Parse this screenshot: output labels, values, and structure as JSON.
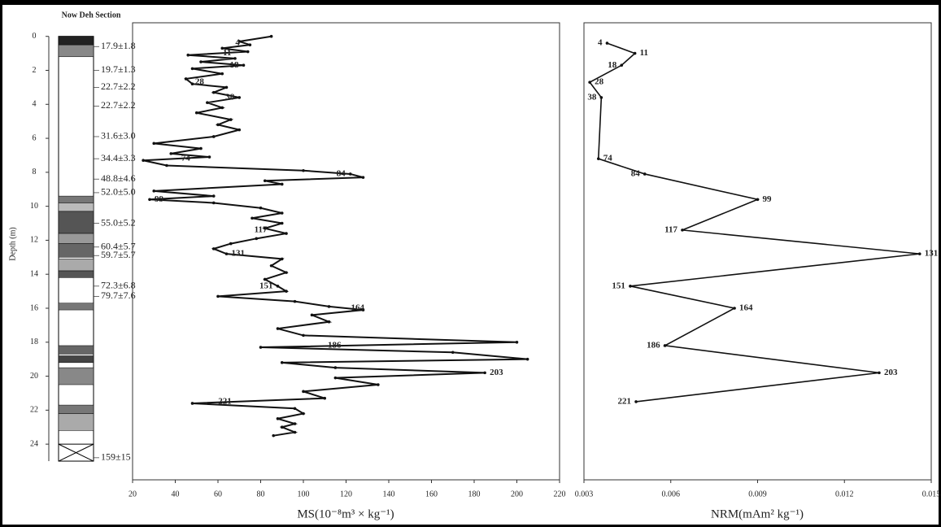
{
  "chart_data": [
    {
      "type": "column",
      "title": "Now Deh Section",
      "y_label": "Depth (m)",
      "ylim": [
        -0.8,
        26.1
      ],
      "yticks": [
        0,
        2,
        4,
        6,
        8,
        10,
        12,
        14,
        16,
        18,
        20,
        22,
        24
      ],
      "ages": {
        "depth": [
          0.6,
          2.0,
          3.0,
          4.1,
          5.9,
          7.2,
          8.4,
          9.2,
          11.0,
          12.4,
          12.9,
          14.7,
          15.3,
          24.8
        ],
        "labels": [
          "17.9±1.8",
          "19.7±1.3",
          "22.7±2.2",
          "22.7±2.2",
          "31.6±3.0",
          "34.4±3.3",
          "48.8±4.6",
          "52.0±5.0",
          "55.0±5.2",
          "60.4±5.7",
          "59.7±5.7",
          "72.3±6.8",
          "79.7±7.6",
          "159±15"
        ]
      }
    },
    {
      "type": "line",
      "x_label": "MS(10⁻⁸m³ × kg⁻¹)",
      "color": "#111111",
      "xlim": [
        20,
        220
      ],
      "xticks": [
        20,
        40,
        60,
        80,
        100,
        120,
        140,
        160,
        180,
        200,
        220
      ],
      "depth": [
        0,
        0.3,
        0.5,
        0.7,
        0.9,
        1.1,
        1.3,
        1.5,
        1.7,
        1.9,
        2.2,
        2.5,
        2.8,
        3.0,
        3.3,
        3.6,
        3.9,
        4.2,
        4.5,
        4.9,
        5.2,
        5.5,
        5.9,
        6.3,
        6.6,
        6.9,
        7.1,
        7.3,
        7.6,
        7.9,
        8.1,
        8.3,
        8.5,
        8.7,
        9.1,
        9.4,
        9.6,
        9.8,
        10.1,
        10.4,
        10.7,
        11.0,
        11.3,
        11.6,
        11.9,
        12.2,
        12.5,
        12.8,
        13.1,
        13.5,
        13.9,
        14.3,
        14.7,
        15.0,
        15.3,
        15.6,
        15.9,
        16.1,
        16.4,
        16.8,
        17.2,
        17.6,
        18.0,
        18.3,
        18.6,
        19.0,
        19.2,
        19.5,
        19.8,
        20.1,
        20.5,
        20.9,
        21.3,
        21.6,
        21.9,
        22.2,
        22.5,
        22.8,
        23.0,
        23.3,
        23.5
      ],
      "values": [
        85,
        70,
        75,
        62,
        74,
        46,
        68,
        52,
        72,
        48,
        62,
        45,
        48,
        64,
        58,
        70,
        55,
        62,
        50,
        66,
        60,
        70,
        58,
        30,
        52,
        38,
        56,
        25,
        36,
        100,
        122,
        128,
        82,
        90,
        30,
        58,
        28,
        58,
        80,
        90,
        76,
        90,
        82,
        92,
        78,
        66,
        58,
        64,
        90,
        85,
        92,
        82,
        88,
        92,
        60,
        96,
        112,
        128,
        104,
        112,
        88,
        100,
        200,
        80,
        170,
        205,
        90,
        115,
        185,
        115,
        135,
        100,
        110,
        48,
        96,
        100,
        88,
        96,
        90,
        96,
        86
      ]
    },
    {
      "type": "line",
      "x_label": "NRM(mAm² kg⁻¹)",
      "color": "#111111",
      "xlim": [
        0.003,
        0.015
      ],
      "xticks": [
        0.003,
        0.006,
        0.009,
        0.012,
        0.015
      ],
      "depth": [
        0.4,
        1.0,
        1.7,
        2.7,
        3.6,
        7.2,
        8.1,
        9.6,
        11.4,
        12.8,
        14.7,
        16.0,
        18.2,
        19.8,
        21.5
      ],
      "values": [
        0.0038,
        0.00476,
        0.0043,
        0.0032,
        0.0036,
        0.0035,
        0.0051,
        0.009,
        0.0064,
        0.0146,
        0.0046,
        0.0082,
        0.0058,
        0.0132,
        0.0048
      ],
      "samples": [
        "4",
        "11",
        "18",
        "28",
        "38",
        "74",
        "84",
        "99",
        "117",
        "131",
        "151",
        "164",
        "186",
        "203",
        "221"
      ]
    }
  ]
}
